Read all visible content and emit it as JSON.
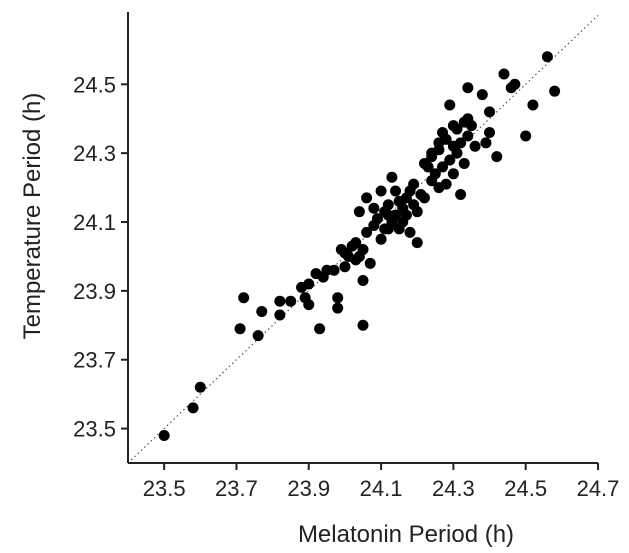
{
  "chart_data": {
    "type": "scatter",
    "title": "",
    "xlabel": "Melatonin Period (h)",
    "ylabel": "Temperature Period (h)",
    "xlim": [
      23.4,
      24.7
    ],
    "ylim": [
      23.4,
      24.71
    ],
    "xticks": [
      "23.5",
      "23.7",
      "23.9",
      "24.1",
      "24.3",
      "24.5",
      "24.7"
    ],
    "yticks": [
      "23.5",
      "23.7",
      "23.9",
      "24.1",
      "24.3",
      "24.5"
    ],
    "reference_line": {
      "style": "dotted",
      "from": [
        23.4,
        23.4
      ],
      "to": [
        24.7,
        24.7
      ]
    },
    "grid": false,
    "marker_color": "#000000",
    "points": [
      [
        23.5,
        23.48
      ],
      [
        23.58,
        23.56
      ],
      [
        23.6,
        23.62
      ],
      [
        23.72,
        23.88
      ],
      [
        23.71,
        23.79
      ],
      [
        23.76,
        23.77
      ],
      [
        23.77,
        23.84
      ],
      [
        23.82,
        23.83
      ],
      [
        23.82,
        23.87
      ],
      [
        23.85,
        23.87
      ],
      [
        23.88,
        23.91
      ],
      [
        23.89,
        23.88
      ],
      [
        23.9,
        23.86
      ],
      [
        23.9,
        23.92
      ],
      [
        23.92,
        23.95
      ],
      [
        23.93,
        23.79
      ],
      [
        23.94,
        23.94
      ],
      [
        23.95,
        23.96
      ],
      [
        23.98,
        23.85
      ],
      [
        23.98,
        23.88
      ],
      [
        23.97,
        23.96
      ],
      [
        24.0,
        23.97
      ],
      [
        24.0,
        24.01
      ],
      [
        24.02,
        24.03
      ],
      [
        24.03,
        23.99
      ],
      [
        24.04,
        24.0
      ],
      [
        24.05,
        23.8
      ],
      [
        24.05,
        23.93
      ],
      [
        24.05,
        24.02
      ],
      [
        24.06,
        24.07
      ],
      [
        24.08,
        24.09
      ],
      [
        24.07,
        23.98
      ],
      [
        24.04,
        24.13
      ],
      [
        24.06,
        24.17
      ],
      [
        24.09,
        24.11
      ],
      [
        24.1,
        24.05
      ],
      [
        24.1,
        24.19
      ],
      [
        24.11,
        24.13
      ],
      [
        24.12,
        24.08
      ],
      [
        24.12,
        24.15
      ],
      [
        24.13,
        24.1
      ],
      [
        24.13,
        24.23
      ],
      [
        24.14,
        24.12
      ],
      [
        24.15,
        24.16
      ],
      [
        24.15,
        24.08
      ],
      [
        24.16,
        24.14
      ],
      [
        24.17,
        24.12
      ],
      [
        24.18,
        24.07
      ],
      [
        24.18,
        24.19
      ],
      [
        24.19,
        24.15
      ],
      [
        24.2,
        24.04
      ],
      [
        24.2,
        24.13
      ],
      [
        24.21,
        24.18
      ],
      [
        24.22,
        24.17
      ],
      [
        24.23,
        24.26
      ],
      [
        24.24,
        24.22
      ],
      [
        24.24,
        24.29
      ],
      [
        24.25,
        24.24
      ],
      [
        24.26,
        24.2
      ],
      [
        24.26,
        24.31
      ],
      [
        24.27,
        24.26
      ],
      [
        24.28,
        24.34
      ],
      [
        24.28,
        24.21
      ],
      [
        24.29,
        24.28
      ],
      [
        24.3,
        24.32
      ],
      [
        24.3,
        24.24
      ],
      [
        24.31,
        24.37
      ],
      [
        24.31,
        24.3
      ],
      [
        24.32,
        24.18
      ],
      [
        24.32,
        24.33
      ],
      [
        24.33,
        24.39
      ],
      [
        24.33,
        24.27
      ],
      [
        24.34,
        24.49
      ],
      [
        24.34,
        24.35
      ],
      [
        24.35,
        24.38
      ],
      [
        24.36,
        24.32
      ],
      [
        24.38,
        24.47
      ],
      [
        24.39,
        24.33
      ],
      [
        24.4,
        24.42
      ],
      [
        24.4,
        24.36
      ],
      [
        24.42,
        24.29
      ],
      [
        24.44,
        24.53
      ],
      [
        24.46,
        24.49
      ],
      [
        24.47,
        24.5
      ],
      [
        24.5,
        24.35
      ],
      [
        24.52,
        24.44
      ],
      [
        24.56,
        24.58
      ],
      [
        24.58,
        24.48
      ],
      [
        24.34,
        24.4
      ],
      [
        24.29,
        24.44
      ],
      [
        24.27,
        24.36
      ],
      [
        24.22,
        24.27
      ],
      [
        24.19,
        24.21
      ],
      [
        24.14,
        24.19
      ],
      [
        24.11,
        24.08
      ],
      [
        24.08,
        24.14
      ],
      [
        24.03,
        24.04
      ],
      [
        24.01,
        24.0
      ],
      [
        23.99,
        24.02
      ],
      [
        24.17,
        24.17
      ],
      [
        24.16,
        24.1
      ],
      [
        24.12,
        24.12
      ],
      [
        24.24,
        24.3
      ],
      [
        24.3,
        24.38
      ],
      [
        24.26,
        24.33
      ]
    ]
  }
}
